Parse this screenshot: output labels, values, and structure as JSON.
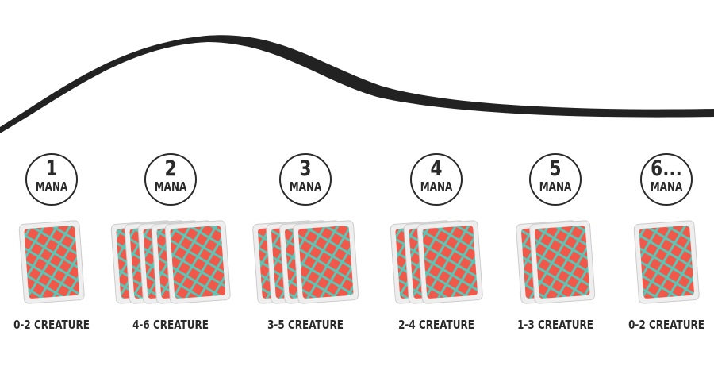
{
  "colors": {
    "curve": "#222222",
    "card_fill": "#f0584a",
    "card_lattice": "#5cc6b6",
    "card_border": "#eeeeee",
    "text": "#2a2a2a"
  },
  "columns": [
    {
      "number": "1",
      "unit": "MANA",
      "cards": 1,
      "label": "0-2 CREATURE"
    },
    {
      "number": "2",
      "unit": "MANA",
      "cards": 5,
      "label": "4-6 CREATURE"
    },
    {
      "number": "3",
      "unit": "MANA",
      "cards": 4,
      "label": "3-5 CREATURE"
    },
    {
      "number": "4",
      "unit": "MANA",
      "cards": 3,
      "label": "2-4 CREATURE"
    },
    {
      "number": "5",
      "unit": "MANA",
      "cards": 2,
      "label": "1-3 CREATURE"
    },
    {
      "number": "6...",
      "unit": "MANA",
      "cards": 1,
      "label": "0-2 CREATURE"
    }
  ]
}
